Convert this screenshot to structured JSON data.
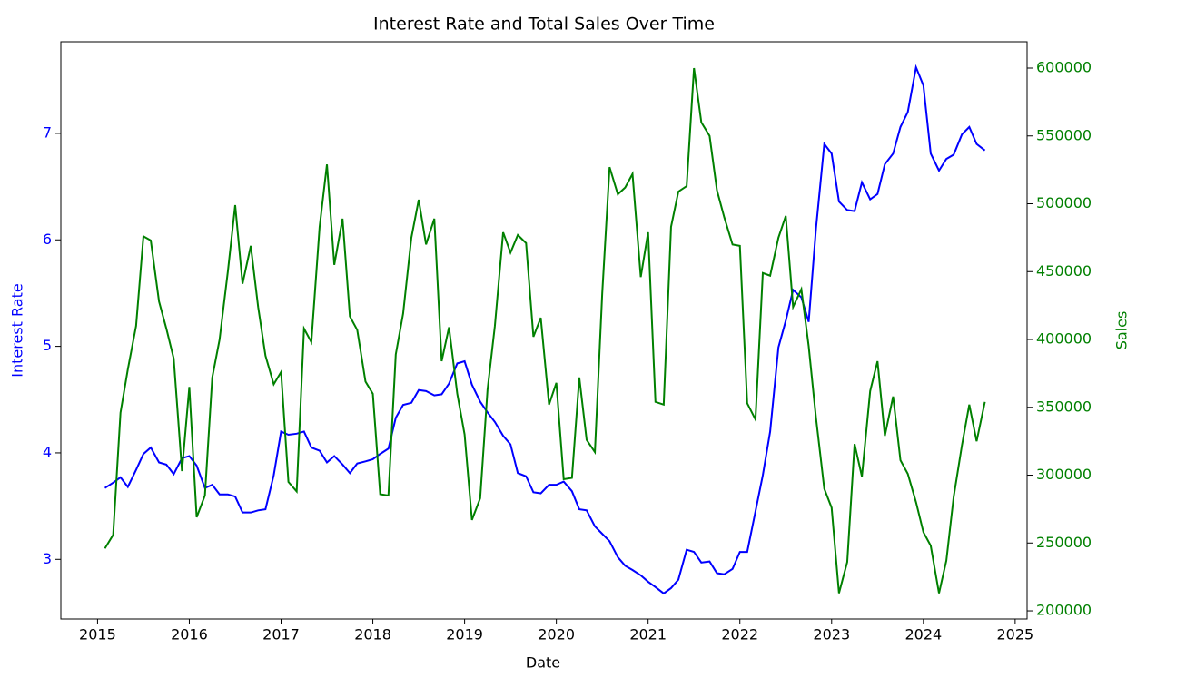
{
  "chart_data": {
    "type": "line",
    "title": "Interest Rate and Total Sales Over Time",
    "xlabel": "Date",
    "ylabel": "Interest Rate",
    "y2label": "Sales",
    "x": [
      2015.08,
      2015.17,
      2015.25,
      2015.33,
      2015.42,
      2015.5,
      2015.58,
      2015.67,
      2015.75,
      2015.83,
      2015.92,
      2016.0,
      2016.08,
      2016.17,
      2016.25,
      2016.33,
      2016.42,
      2016.5,
      2016.58,
      2016.67,
      2016.75,
      2016.83,
      2016.92,
      2017.0,
      2017.08,
      2017.17,
      2017.25,
      2017.33,
      2017.42,
      2017.5,
      2017.58,
      2017.67,
      2017.75,
      2017.83,
      2017.92,
      2018.0,
      2018.08,
      2018.17,
      2018.25,
      2018.33,
      2018.42,
      2018.5,
      2018.58,
      2018.67,
      2018.75,
      2018.83,
      2018.92,
      2019.0,
      2019.08,
      2019.17,
      2019.25,
      2019.33,
      2019.42,
      2019.5,
      2019.58,
      2019.67,
      2019.75,
      2019.83,
      2019.92,
      2020.0,
      2020.08,
      2020.17,
      2020.25,
      2020.33,
      2020.42,
      2020.5,
      2020.58,
      2020.67,
      2020.75,
      2020.83,
      2020.92,
      2021.0,
      2021.08,
      2021.17,
      2021.25,
      2021.33,
      2021.42,
      2021.5,
      2021.58,
      2021.67,
      2021.75,
      2021.83,
      2021.92,
      2022.0,
      2022.08,
      2022.17,
      2022.25,
      2022.33,
      2022.42,
      2022.5,
      2022.58,
      2022.67,
      2022.75,
      2022.83,
      2022.92,
      2023.0,
      2023.08,
      2023.17,
      2023.25,
      2023.33,
      2023.42,
      2023.5,
      2023.58,
      2023.67,
      2023.75,
      2023.83,
      2023.92,
      2024.0,
      2024.08,
      2024.17,
      2024.25,
      2024.33,
      2024.42,
      2024.5,
      2024.58,
      2024.67
    ],
    "series": [
      {
        "color": "blue",
        "axis": "y",
        "values": [
          3.67,
          3.72,
          3.77,
          3.68,
          3.84,
          3.99,
          4.05,
          3.91,
          3.89,
          3.8,
          3.95,
          3.97,
          3.88,
          3.67,
          3.7,
          3.61,
          3.61,
          3.59,
          3.44,
          3.44,
          3.46,
          3.47,
          3.79,
          4.2,
          4.17,
          4.18,
          4.2,
          4.05,
          4.02,
          3.91,
          3.97,
          3.89,
          3.81,
          3.9,
          3.92,
          3.94,
          3.99,
          4.04,
          4.33,
          4.45,
          4.47,
          4.59,
          4.58,
          4.54,
          4.55,
          4.65,
          4.84,
          4.86,
          4.64,
          4.48,
          4.38,
          4.29,
          4.16,
          4.08,
          3.81,
          3.78,
          3.63,
          3.62,
          3.7,
          3.7,
          3.73,
          3.64,
          3.47,
          3.46,
          3.31,
          3.24,
          3.17,
          3.02,
          2.94,
          2.9,
          2.85,
          2.79,
          2.74,
          2.68,
          2.73,
          2.81,
          3.09,
          3.07,
          2.97,
          2.98,
          2.87,
          2.86,
          2.91,
          3.07,
          3.07,
          3.45,
          3.79,
          4.2,
          4.99,
          5.24,
          5.53,
          5.46,
          5.23,
          6.11,
          6.9,
          6.81,
          6.36,
          6.28,
          6.27,
          6.54,
          6.38,
          6.43,
          6.71,
          6.81,
          7.06,
          7.2,
          7.62,
          7.45,
          6.81,
          6.65,
          6.76,
          6.8,
          6.99,
          7.06,
          6.9,
          6.84
        ]
      },
      {
        "color": "green",
        "axis": "y2",
        "values": [
          246000,
          256000,
          346000,
          378000,
          410000,
          476000,
          473000,
          428000,
          408000,
          386000,
          303000,
          365000,
          269000,
          285000,
          372000,
          400000,
          450000,
          499000,
          441000,
          469000,
          424000,
          388000,
          367000,
          376000,
          295000,
          288000,
          408000,
          398000,
          483000,
          529000,
          455000,
          489000,
          417000,
          407000,
          369000,
          360000,
          286000,
          285000,
          389000,
          419000,
          475000,
          503000,
          470000,
          489000,
          384000,
          409000,
          360000,
          330000,
          267000,
          283000,
          363000,
          410000,
          479000,
          464000,
          477000,
          471000,
          402000,
          416000,
          352000,
          368000,
          297000,
          298000,
          372000,
          326000,
          317000,
          434000,
          527000,
          507000,
          512000,
          522000,
          446000,
          479000,
          354000,
          352000,
          483000,
          509000,
          513000,
          600000,
          560000,
          550000,
          510000,
          490000,
          470000,
          469000,
          353000,
          341000,
          449000,
          447000,
          475000,
          491000,
          424000,
          437000,
          395000,
          342000,
          290000,
          276000,
          213000,
          236000,
          323000,
          299000,
          362000,
          384000,
          329000,
          358000,
          311000,
          301000,
          280000,
          258000,
          248000,
          213000,
          237000,
          284000,
          322000,
          352000,
          325000,
          354000
        ]
      }
    ],
    "xlim": [
      2014.6,
      2025.13
    ],
    "xticks": [
      2015,
      2016,
      2017,
      2018,
      2019,
      2020,
      2021,
      2022,
      2023,
      2024,
      2025
    ],
    "ylim": [
      2.44,
      7.86
    ],
    "yticks": [
      3,
      4,
      5,
      6,
      7
    ],
    "y2lim": [
      194000,
      619400
    ],
    "y2ticks": [
      200000,
      250000,
      300000,
      350000,
      400000,
      450000,
      500000,
      550000,
      600000
    ],
    "ycolor": "blue",
    "y2color": "green"
  }
}
